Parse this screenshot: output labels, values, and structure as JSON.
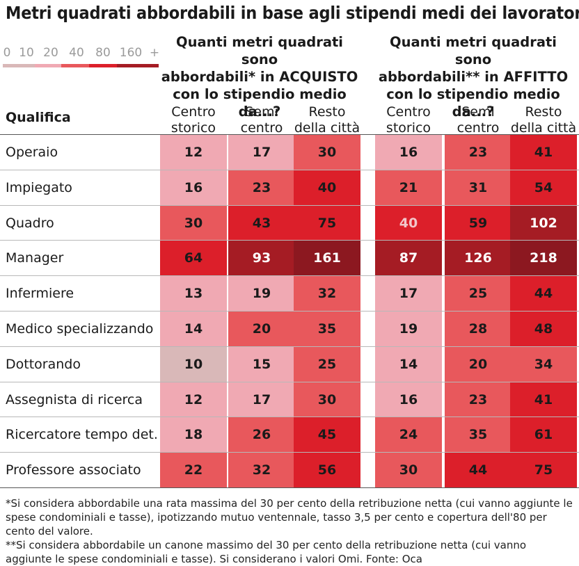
{
  "title": "Metri quadrati abbordabili in base agli stipendi medi dei lavoratori",
  "legend": {
    "labels": [
      "0",
      "10",
      "20",
      "40",
      "80",
      "160",
      "+"
    ],
    "colors": [
      "#d9b8b8",
      "#f0a9b3",
      "#e8585c",
      "#dc1f2a",
      "#a51c24"
    ]
  },
  "groups": [
    {
      "header": [
        "Quanti metri quadrati sono",
        "abbordabili* in ACQUISTO",
        "con lo stipendio medio da...?"
      ]
    },
    {
      "header": [
        "Quanti metri quadrati sono",
        "abbordabili** in AFFITTO",
        "con lo stipendio medio da...?"
      ]
    }
  ],
  "columns": [
    [
      "Centro",
      "storico"
    ],
    [
      "Semi",
      "centro"
    ],
    [
      "Resto",
      "della città"
    ],
    [
      "Centro",
      "storico"
    ],
    [
      "Semi",
      "centro"
    ],
    [
      "Resto",
      "della città"
    ]
  ],
  "row_header": "Qualifica",
  "footnote": [
    "*Si considera abbordabile una rata massima del 30 per cento della retribuzione netta (cui vanno aggiunte le spese condominiali e tasse), ipotizzando mutuo ventennale, tasso 3,5 per cento e copertura dell'80 per cento del valore.",
    "**Si considera abbordabile un canone massimo del 30 per cento della retribuzione netta (cui vanno aggiunte le spese condominiali e tasse). Si considerano i valori Omi. Fonte: Oca"
  ],
  "chart_data": {
    "type": "heatmap",
    "title": "Metri quadrati abbordabili in base agli stipendi medi dei lavoratori",
    "color_scale_bins": [
      0,
      10,
      20,
      40,
      80,
      160
    ],
    "column_groups": [
      "ACQUISTO",
      "AFFITTO"
    ],
    "columns": [
      "ACQUISTO - Centro storico",
      "ACQUISTO - Semi centro",
      "ACQUISTO - Resto della città",
      "AFFITTO - Centro storico",
      "AFFITTO - Semi centro",
      "AFFITTO - Resto della città"
    ],
    "rows": [
      "Operaio",
      "Impiegato",
      "Quadro",
      "Manager",
      "Infermiere",
      "Medico specializzando",
      "Dottorando",
      "Assegnista di ricerca",
      "Ricercatore tempo det.",
      "Professore associato"
    ],
    "values": [
      [
        12,
        17,
        30,
        16,
        23,
        41
      ],
      [
        16,
        23,
        40,
        21,
        31,
        54
      ],
      [
        30,
        43,
        75,
        40,
        59,
        102
      ],
      [
        64,
        93,
        161,
        87,
        126,
        218
      ],
      [
        13,
        19,
        32,
        17,
        25,
        44
      ],
      [
        14,
        20,
        35,
        19,
        28,
        48
      ],
      [
        10,
        15,
        25,
        14,
        20,
        34
      ],
      [
        12,
        17,
        30,
        16,
        23,
        41
      ],
      [
        18,
        26,
        45,
        24,
        35,
        61
      ],
      [
        22,
        32,
        56,
        30,
        44,
        75
      ]
    ]
  }
}
